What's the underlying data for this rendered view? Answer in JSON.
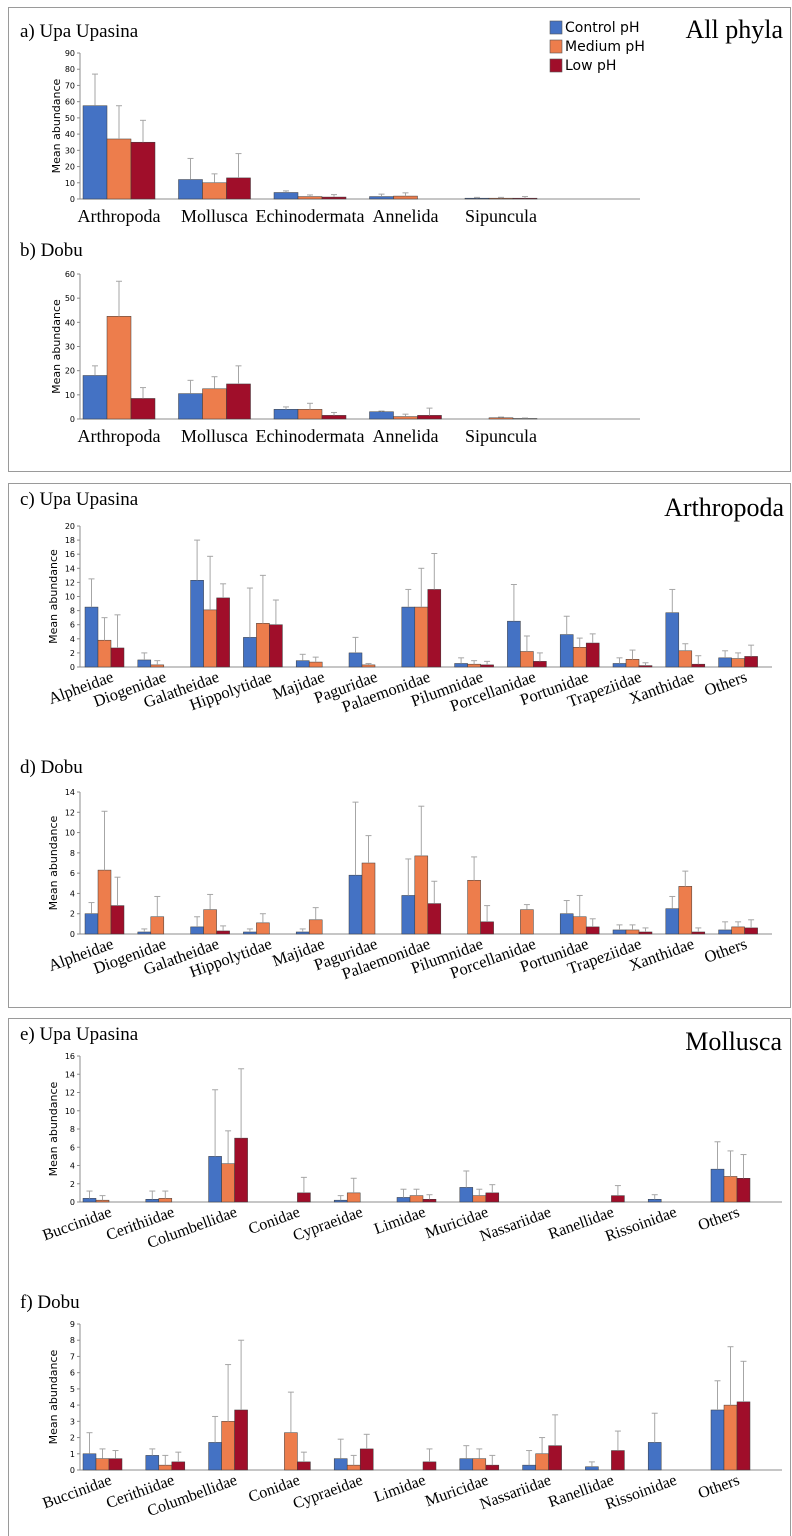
{
  "legend": [
    "Control pH",
    "Medium pH",
    "Low pH"
  ],
  "colors": {
    "control": "#4472c4",
    "medium": "#ed7d4c",
    "low": "#a00e2a",
    "error": "#a6a6a6",
    "axis": "#8c8c8c"
  },
  "panels": [
    {
      "title": "All phyla"
    },
    {
      "title": "Arthropoda"
    },
    {
      "title": "Mollusca"
    }
  ],
  "chart_data": [
    {
      "type": "bar",
      "label": "a) Upa Upasina",
      "ylabel": "Mean abundance",
      "ylim": [
        0,
        90
      ],
      "yticks": [
        0,
        10,
        20,
        30,
        40,
        50,
        60,
        70,
        80,
        90
      ],
      "categories": [
        "Arthropoda",
        "Mollusca",
        "Echinodermata",
        "Annelida",
        "Sipuncula"
      ],
      "series": [
        {
          "name": "Control pH",
          "values": [
            57.5,
            12,
            4,
            1.5,
            0.5
          ],
          "errors": [
            19.5,
            13,
            1,
            1.5,
            0.5
          ]
        },
        {
          "name": "Medium pH",
          "values": [
            37,
            10,
            1.5,
            1.8,
            0.5
          ],
          "errors": [
            20.5,
            5.5,
            1,
            2,
            0.5
          ]
        },
        {
          "name": "Low pH",
          "values": [
            35,
            13,
            1.2,
            0,
            0.5
          ],
          "errors": [
            13.5,
            15,
            1.5,
            0,
            1
          ]
        }
      ]
    },
    {
      "type": "bar",
      "label": "b) Dobu",
      "ylabel": "Mean abundance",
      "ylim": [
        0,
        60
      ],
      "yticks": [
        0,
        10,
        20,
        30,
        40,
        50,
        60
      ],
      "categories": [
        "Arthropoda",
        "Mollusca",
        "Echinodermata",
        "Annelida",
        "Sipuncula"
      ],
      "series": [
        {
          "name": "Control pH",
          "values": [
            18,
            10.5,
            4,
            3,
            0
          ],
          "errors": [
            4,
            5.5,
            1,
            0.3,
            0
          ]
        },
        {
          "name": "Medium pH",
          "values": [
            42.5,
            12.5,
            4,
            1,
            0.5
          ],
          "errors": [
            14.5,
            5,
            2.5,
            1,
            0.3
          ]
        },
        {
          "name": "Low pH",
          "values": [
            8.5,
            14.5,
            1.5,
            1.5,
            0.2
          ],
          "errors": [
            4.5,
            7.5,
            1.2,
            3,
            0.2
          ]
        }
      ]
    },
    {
      "type": "bar",
      "label": "c) Upa Upasina",
      "ylabel": "Mean abundance",
      "ylim": [
        0,
        20
      ],
      "yticks": [
        0,
        2,
        4,
        6,
        8,
        10,
        12,
        14,
        16,
        18,
        20
      ],
      "categories": [
        "Alpheidae",
        "Diogenidae",
        "Galatheidae",
        "Hippolytidae",
        "Majidae",
        "Paguridae",
        "Palaemonidae",
        "Pilumnidae",
        "Porcellanidae",
        "Portunidae",
        "Trapeziidae",
        "Xanthidae",
        "Others"
      ],
      "series": [
        {
          "name": "Control pH",
          "values": [
            8.5,
            1,
            12.3,
            4.2,
            0.9,
            2,
            8.5,
            0.5,
            6.5,
            4.6,
            0.5,
            7.7,
            1.3
          ],
          "errors": [
            4,
            1,
            5.7,
            7,
            0.9,
            2.2,
            2.5,
            0.8,
            5.2,
            2.6,
            0.8,
            3.3,
            1
          ]
        },
        {
          "name": "Medium pH",
          "values": [
            3.8,
            0.3,
            8.1,
            6.2,
            0.7,
            0.3,
            8.5,
            0.4,
            2.2,
            2.8,
            1.1,
            2.3,
            1.2
          ],
          "errors": [
            3.2,
            0.6,
            7.6,
            6.8,
            0.7,
            0.2,
            5.5,
            0.5,
            2.2,
            1.3,
            1.3,
            1,
            0.8
          ]
        },
        {
          "name": "Low pH",
          "values": [
            2.7,
            0,
            9.8,
            6,
            0,
            0,
            11,
            0.3,
            0.8,
            3.4,
            0.2,
            0.4,
            1.5
          ],
          "errors": [
            4.7,
            0,
            2,
            3.5,
            0,
            0,
            5.1,
            0.5,
            1.2,
            1.3,
            0.4,
            1.2,
            1.6
          ]
        }
      ]
    },
    {
      "type": "bar",
      "label": "d) Dobu",
      "ylabel": "Mean abundance",
      "ylim": [
        0,
        14
      ],
      "yticks": [
        0,
        2,
        4,
        6,
        8,
        10,
        12,
        14
      ],
      "categories": [
        "Alpheidae",
        "Diogenidae",
        "Galatheidae",
        "Hippolytidae",
        "Majidae",
        "Paguridae",
        "Palaemonidae",
        "Pilumnidae",
        "Porcellanidae",
        "Portunidae",
        "Trapeziidae",
        "Xanthidae",
        "Others"
      ],
      "series": [
        {
          "name": "Control pH",
          "values": [
            2,
            0.2,
            0.7,
            0.2,
            0.2,
            5.8,
            3.8,
            0,
            0,
            2,
            0.4,
            2.5,
            0.4
          ],
          "errors": [
            1.1,
            0.3,
            1,
            0.3,
            0.3,
            7.2,
            3.6,
            0,
            0,
            1.3,
            0.5,
            1.2,
            0.8
          ]
        },
        {
          "name": "Medium pH",
          "values": [
            6.3,
            1.7,
            2.4,
            1.1,
            1.4,
            7,
            7.7,
            5.3,
            2.4,
            1.7,
            0.4,
            4.7,
            0.7
          ],
          "errors": [
            5.8,
            2,
            1.5,
            0.9,
            1.2,
            2.7,
            4.9,
            2.3,
            0.5,
            2.1,
            0.5,
            1.5,
            0.5
          ]
        },
        {
          "name": "Low pH",
          "values": [
            2.8,
            0,
            0.3,
            0,
            0,
            0,
            3,
            1.2,
            0,
            0.7,
            0.2,
            0.2,
            0.6
          ],
          "errors": [
            2.8,
            0,
            0.5,
            0,
            0,
            0,
            2.2,
            1.6,
            0,
            0.8,
            0.4,
            0.4,
            0.8
          ]
        }
      ]
    },
    {
      "type": "bar",
      "label": "e) Upa Upasina",
      "ylabel": "Mean abundance",
      "ylim": [
        0,
        16
      ],
      "yticks": [
        0,
        2,
        4,
        6,
        8,
        10,
        12,
        14,
        16
      ],
      "categories": [
        "Buccinidae",
        "Cerithiidae",
        "Columbellidae",
        "Conidae",
        "Cypraeidae",
        "Limidae",
        "Muricidae",
        "Nassariidae",
        "Ranellidae",
        "Rissoinidae",
        "Others"
      ],
      "series": [
        {
          "name": "Control pH",
          "values": [
            0.4,
            0.3,
            5,
            0,
            0.2,
            0.5,
            1.6,
            0,
            0,
            0.3,
            3.6
          ],
          "errors": [
            0.8,
            0.9,
            7.3,
            0,
            0.5,
            0.9,
            1.8,
            0,
            0,
            0.5,
            3
          ]
        },
        {
          "name": "Medium pH",
          "values": [
            0.2,
            0.4,
            4.2,
            0,
            1,
            0.7,
            0.7,
            0,
            0,
            0,
            2.8
          ],
          "errors": [
            0.5,
            0.8,
            3.6,
            0,
            1.6,
            0.7,
            0.7,
            0,
            0,
            0,
            2.8
          ]
        },
        {
          "name": "Low pH",
          "values": [
            0,
            0,
            7,
            1,
            0,
            0.3,
            1,
            0,
            0.7,
            0,
            2.6
          ],
          "errors": [
            0,
            0,
            7.6,
            1.7,
            0,
            0.5,
            0.9,
            0,
            1.1,
            0,
            2.6
          ]
        }
      ]
    },
    {
      "type": "bar",
      "label": "f) Dobu",
      "ylabel": "Mean abundance",
      "ylim": [
        0,
        9
      ],
      "yticks": [
        0,
        1,
        2,
        3,
        4,
        5,
        6,
        7,
        8,
        9
      ],
      "categories": [
        "Buccinidae",
        "Cerithiidae",
        "Columbellidae",
        "Conidae",
        "Cypraeidae",
        "Limidae",
        "Muricidae",
        "Nassariidae",
        "Ranellidae",
        "Rissoinidae",
        "Others"
      ],
      "series": [
        {
          "name": "Control pH",
          "values": [
            1,
            0.9,
            1.7,
            0,
            0.7,
            0,
            0.7,
            0.3,
            0.2,
            1.7,
            3.7
          ],
          "errors": [
            1.3,
            0.4,
            1.6,
            0,
            1.2,
            0,
            0.8,
            0.9,
            0.3,
            1.8,
            1.8
          ]
        },
        {
          "name": "Medium pH",
          "values": [
            0.7,
            0.3,
            3,
            2.3,
            0.3,
            0,
            0.7,
            1,
            0,
            0,
            4
          ],
          "errors": [
            0.6,
            0.6,
            3.5,
            2.5,
            0.6,
            0,
            0.6,
            1,
            0,
            0,
            3.6
          ]
        },
        {
          "name": "Low pH",
          "values": [
            0.7,
            0.5,
            3.7,
            0.5,
            1.3,
            0.5,
            0.3,
            1.5,
            1.2,
            0,
            4.2
          ],
          "errors": [
            0.5,
            0.6,
            4.3,
            0.6,
            0.9,
            0.8,
            0.6,
            1.9,
            1.2,
            0,
            2.5
          ]
        }
      ]
    }
  ]
}
